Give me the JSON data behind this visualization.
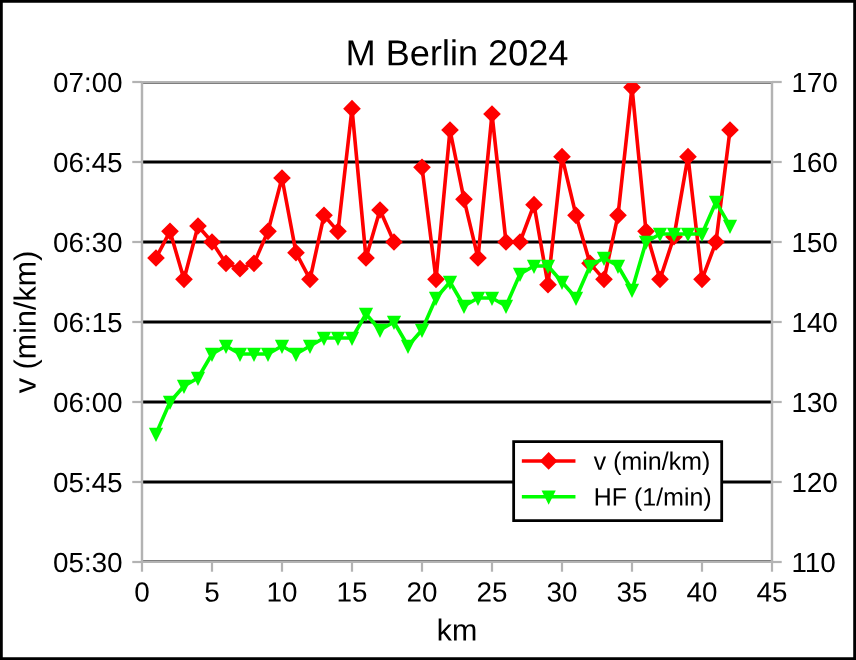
{
  "chart_data": {
    "type": "line",
    "title": "M Berlin 2024",
    "xlabel": "km",
    "ylabel": "v (min/km)",
    "x": [
      1,
      2,
      3,
      4,
      5,
      6,
      7,
      8,
      9,
      10,
      11,
      12,
      13,
      14,
      15,
      16,
      17,
      18,
      19,
      20,
      21,
      22,
      23,
      24,
      25,
      26,
      27,
      28,
      29,
      30,
      31,
      32,
      33,
      34,
      35,
      36,
      37,
      38,
      39,
      40,
      41,
      42
    ],
    "series": [
      {
        "name": "v (min/km)",
        "color": "#ff0000",
        "marker": "diamond",
        "values": [
          387,
          392,
          383,
          393,
          390,
          386,
          385,
          386,
          392,
          402,
          388,
          383,
          395,
          392,
          415,
          387,
          396,
          390,
          null,
          404,
          383,
          411,
          398,
          387,
          414,
          390,
          390,
          397,
          382,
          406,
          395,
          386,
          383,
          395,
          419,
          392,
          383,
          391,
          406,
          383,
          390,
          411
        ]
      },
      {
        "name": "HF (1/min)",
        "color": "#00ff00",
        "marker": "triangle",
        "axis": "y2",
        "values": [
          126,
          130,
          132,
          133,
          136,
          137,
          136,
          136,
          136,
          137,
          136,
          137,
          138,
          138,
          138,
          141,
          139,
          140,
          137,
          139,
          143,
          145,
          142,
          143,
          143,
          142,
          146,
          147,
          147,
          145,
          143,
          147,
          148,
          147,
          144,
          150,
          151,
          151,
          151,
          151,
          155,
          152
        ]
      }
    ],
    "xlim": [
      0,
      45
    ],
    "xticks": [
      0,
      5,
      10,
      15,
      20,
      25,
      30,
      35,
      40,
      45
    ],
    "ylim": [
      330,
      420
    ],
    "yticks": [
      {
        "value": 330,
        "label": "05:30"
      },
      {
        "value": 345,
        "label": "05:45"
      },
      {
        "value": 360,
        "label": "06:00"
      },
      {
        "value": 375,
        "label": "06:15"
      },
      {
        "value": 390,
        "label": "06:30"
      },
      {
        "value": 405,
        "label": "06:45"
      },
      {
        "value": 420,
        "label": "07:00"
      }
    ],
    "y2lim": [
      110,
      170
    ],
    "y2ticks": [
      110,
      120,
      130,
      140,
      150,
      160,
      170
    ],
    "grid": "y",
    "legend": "bottom right",
    "line_style": "solid"
  }
}
